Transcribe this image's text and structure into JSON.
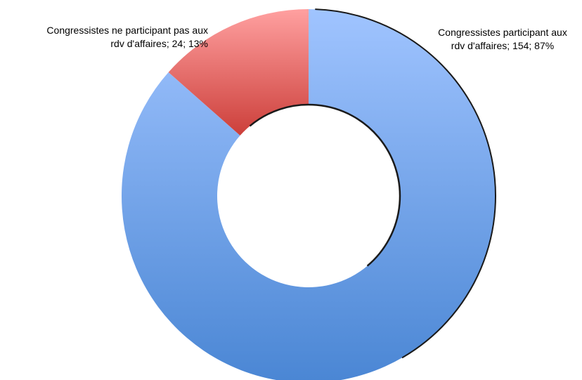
{
  "chart_data": {
    "type": "pie",
    "donut": true,
    "title": "",
    "slices": [
      {
        "label": "Congressistes participant aux rdv d'affaires",
        "value": 154,
        "percent": "87%",
        "label_lines": [
          "Congressistes participant aux",
          "rdv d'affaires; 154; 87%"
        ],
        "color_top": "#a0c4ff",
        "color_bottom": "#4a86d4"
      },
      {
        "label": "Congressistes ne participant pas aux rdv d'affaires",
        "value": 24,
        "percent": "13%",
        "label_lines": [
          "Congressistes ne participant pas aux",
          "rdv d'affaires; 24; 13%"
        ],
        "color_top": "#ffa0a0",
        "color_bottom": "#cc3f3a"
      }
    ],
    "legend": "none",
    "start_angle": "12 o'clock, clockwise"
  }
}
